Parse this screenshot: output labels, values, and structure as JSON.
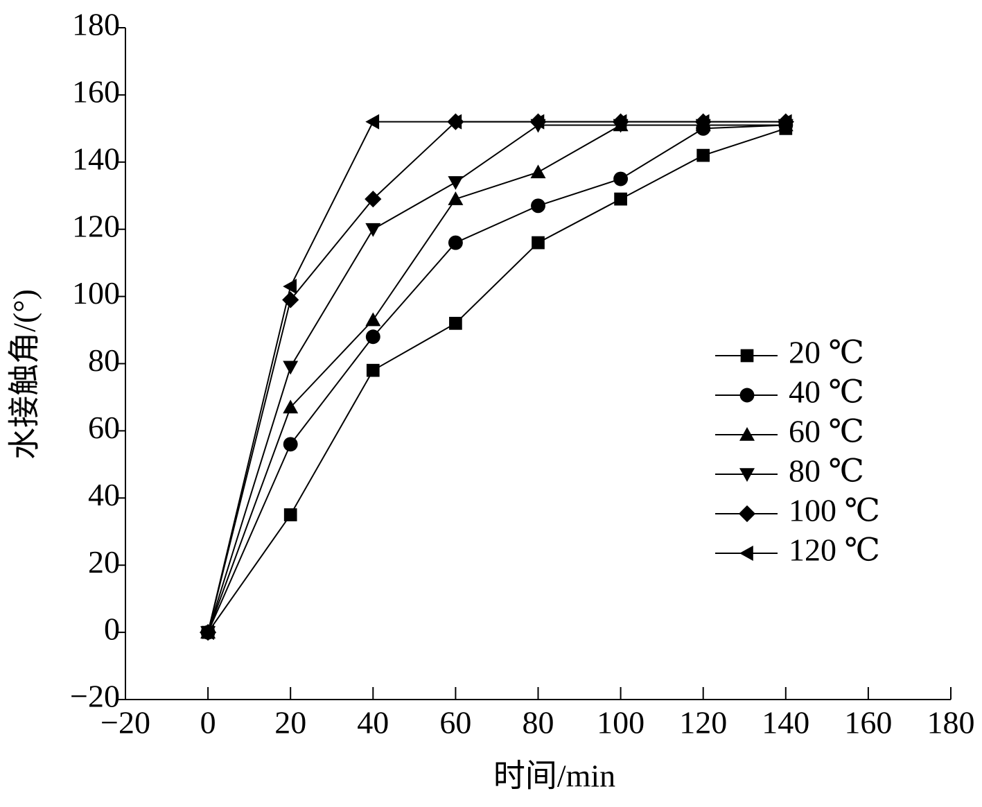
{
  "chart_data": {
    "type": "line",
    "xlabel": "时间/min",
    "ylabel": "水接触角/(°)",
    "x": [
      0,
      20,
      40,
      60,
      80,
      100,
      120,
      140
    ],
    "series": [
      {
        "name": "20 ℃",
        "color": "#000000",
        "marker": "square",
        "values": [
          0,
          35,
          78,
          92,
          116,
          129,
          142,
          150
        ]
      },
      {
        "name": "40 ℃",
        "color": "#000000",
        "marker": "circle",
        "values": [
          0,
          56,
          88,
          116,
          127,
          135,
          150,
          151
        ]
      },
      {
        "name": "60 ℃",
        "color": "#000000",
        "marker": "triangle-up",
        "values": [
          0,
          67,
          93,
          129,
          137,
          151,
          151,
          151
        ]
      },
      {
        "name": "80 ℃",
        "color": "#000000",
        "marker": "triangle-down",
        "values": [
          0,
          79,
          120,
          134,
          151,
          151,
          151,
          151
        ]
      },
      {
        "name": "100 ℃",
        "color": "#000000",
        "marker": "diamond",
        "values": [
          0,
          99,
          129,
          152,
          152,
          152,
          152,
          152
        ]
      },
      {
        "name": "120 ℃",
        "color": "#000000",
        "marker": "triangle-left",
        "values": [
          0,
          103,
          152,
          152,
          152,
          152,
          152,
          152
        ]
      }
    ],
    "xlim": [
      -20,
      180
    ],
    "xticks": [
      {
        "value": -20,
        "label": "−20"
      },
      0,
      20,
      40,
      60,
      80,
      100,
      120,
      140,
      160,
      180
    ],
    "ylim": [
      -20,
      180
    ],
    "yticks": [
      {
        "value": -20,
        "label": "−20"
      },
      0,
      20,
      40,
      60,
      80,
      100,
      120,
      140,
      160,
      180
    ],
    "legend": "right"
  }
}
